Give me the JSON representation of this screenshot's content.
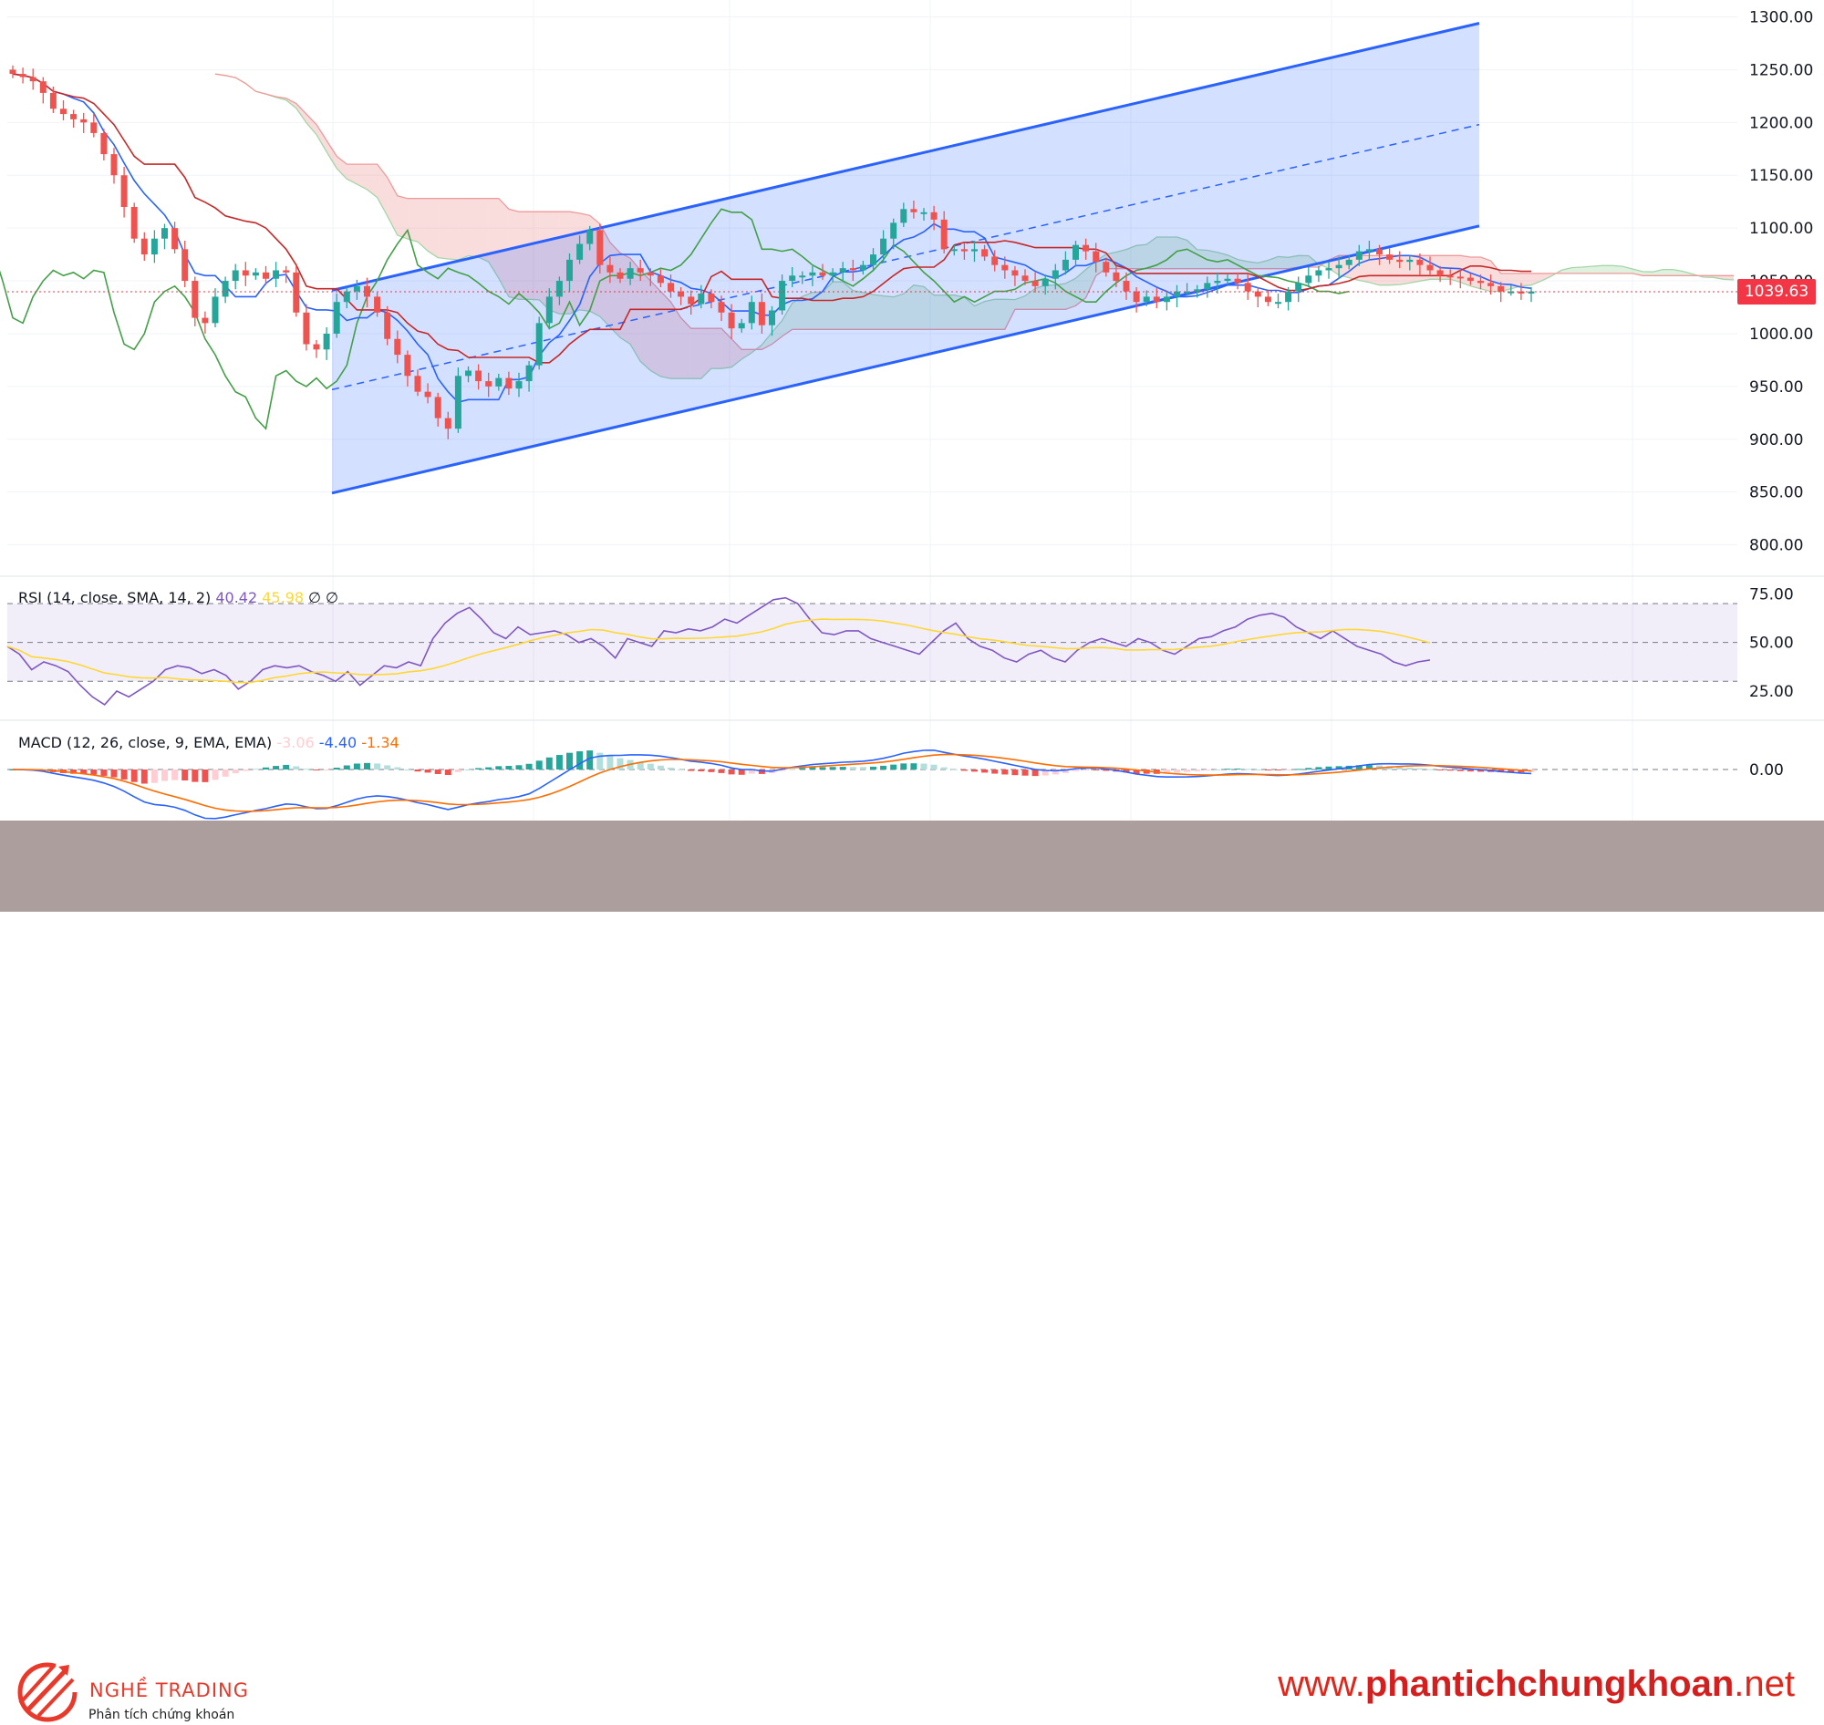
{
  "chart_data": {
    "type": "candlestick",
    "price_axis": {
      "ticks": [
        "1300.00",
        "1250.00",
        "1200.00",
        "1150.00",
        "1100.00",
        "1050.00",
        "1000.00",
        "950.00",
        "900.00",
        "850.00",
        "800.00"
      ],
      "tick_values": [
        1300,
        1250,
        1200,
        1150,
        1100,
        1050,
        1000,
        950,
        900,
        850,
        800
      ],
      "ylim": [
        772,
        1316
      ]
    },
    "last_price": "1039.63",
    "last_price_value": 1039.63,
    "closes": [
      1246,
      1243,
      1239,
      1228,
      1213,
      1208,
      1203,
      1200,
      1190,
      1170,
      1150,
      1120,
      1090,
      1075,
      1090,
      1100,
      1080,
      1050,
      1015,
      1010,
      1035,
      1050,
      1060,
      1055,
      1058,
      1052,
      1060,
      1058,
      1020,
      990,
      985,
      1000,
      1030,
      1040,
      1045,
      1035,
      1020,
      995,
      980,
      960,
      945,
      940,
      920,
      910,
      960,
      965,
      955,
      950,
      958,
      948,
      955,
      970,
      1010,
      1035,
      1050,
      1070,
      1085,
      1098,
      1065,
      1058,
      1052,
      1062,
      1058,
      1055,
      1048,
      1040,
      1035,
      1028,
      1038,
      1030,
      1020,
      1005,
      1010,
      1030,
      1008,
      1022,
      1050,
      1055,
      1055,
      1058,
      1055,
      1058,
      1062,
      1060,
      1065,
      1075,
      1090,
      1105,
      1118,
      1115,
      1115,
      1108,
      1080,
      1080,
      1078,
      1080,
      1073,
      1065,
      1060,
      1055,
      1050,
      1045,
      1052,
      1060,
      1070,
      1084,
      1078,
      1068,
      1058,
      1050,
      1040,
      1030,
      1035,
      1030,
      1035,
      1040,
      1040,
      1042,
      1048,
      1050,
      1052,
      1048,
      1040,
      1035,
      1030,
      1030,
      1040,
      1048,
      1055,
      1060,
      1062,
      1065,
      1070,
      1078,
      1080,
      1075,
      1070,
      1068,
      1070,
      1065,
      1060,
      1055,
      1054,
      1053,
      1050,
      1048,
      1045,
      1040,
      1040,
      1038,
      1040
    ],
    "channel": {
      "upper": {
        "start": [
          0,
          1041
        ],
        "end": [
          162,
          1294
        ]
      },
      "lower": {
        "start": [
          0,
          849
        ],
        "end": [
          162,
          1102
        ]
      },
      "mid": {
        "start": [
          0,
          947
        ],
        "end": [
          162,
          1198
        ]
      }
    },
    "rsi": {
      "label": "RSI (14, close, SMA, 14, 2)",
      "value": "40.42",
      "sma_value": "45.98",
      "extra": "∅ ∅",
      "ticks": [
        "75.00",
        "50.00",
        "25.00"
      ],
      "tick_values": [
        75,
        50,
        25
      ],
      "band": [
        30,
        70
      ],
      "values": [
        48,
        44,
        36,
        40,
        38,
        35,
        28,
        22,
        18,
        25,
        22,
        26,
        30,
        36,
        38,
        37,
        34,
        36,
        33,
        26,
        30,
        36,
        38,
        37,
        38,
        35,
        33,
        30,
        35,
        28,
        33,
        38,
        37,
        40,
        38,
        52,
        60,
        65,
        68,
        62,
        55,
        52,
        58,
        54,
        55,
        56,
        54,
        50,
        52,
        48,
        42,
        52,
        50,
        48,
        56,
        55,
        57,
        56,
        58,
        62,
        60,
        64,
        68,
        72,
        73,
        70,
        62,
        55,
        54,
        56,
        56,
        52,
        50,
        48,
        46,
        44,
        50,
        56,
        60,
        52,
        48,
        46,
        42,
        40,
        44,
        46,
        42,
        40,
        46,
        50,
        52,
        50,
        48,
        52,
        50,
        46,
        44,
        48,
        52,
        53,
        56,
        58,
        62,
        64,
        65,
        63,
        58,
        55,
        52,
        56,
        52,
        48,
        46,
        44,
        40,
        38,
        40,
        41
      ]
    },
    "macd": {
      "label": "MACD (12, 26, close, 9, EMA, EMA)",
      "hist_value": "-3.06",
      "macd_value": "-4.40",
      "signal_value": "-1.34",
      "ticks": [
        "0.00"
      ],
      "tick_values": [
        0
      ]
    }
  },
  "colors": {
    "up": "#26a69a",
    "down": "#ef5350",
    "channel_line": "#2962ff",
    "channel_fill": "#2962ff",
    "kijun": "#c62828",
    "tenkan": "#2962ff",
    "chikou": "#43a047",
    "cloud_bull": "#a5d6a7",
    "cloud_bear": "#ef9a9a",
    "rsi_line": "#7e57c2",
    "rsi_sma": "#fdd835",
    "macd_line": "#2962ff",
    "signal_line": "#ff6d00",
    "price_badge": "#f23645"
  },
  "footer": {
    "brand_name": "NGHỀ TRADING",
    "brand_tagline": "Phân tích chứng khoán",
    "url_prefix": "www.",
    "url_domain": "phantichchungkhoan",
    "url_suffix": ".net"
  }
}
